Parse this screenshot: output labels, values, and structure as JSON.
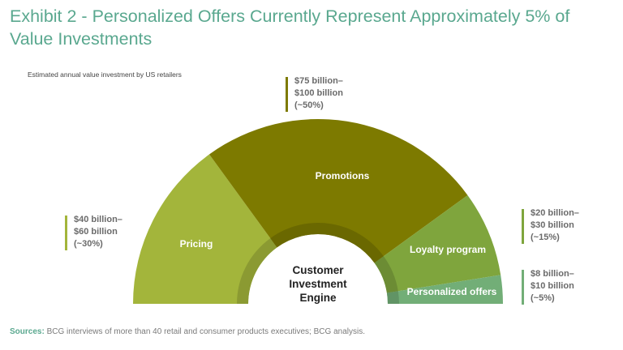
{
  "title": "Exhibit 2 - Personalized Offers Currently Represent Approximately 5% of Value Investments",
  "chart_data": {
    "type": "pie",
    "subtitle": "Estimated annual value investment by US retailers",
    "center_label": [
      "Customer",
      "Investment",
      "Engine"
    ],
    "segments": [
      {
        "name": "Pricing",
        "value": 30,
        "color": "#a3b53b",
        "annotation": [
          "$40 billion–",
          "$60 billion",
          "(~30%)"
        ]
      },
      {
        "name": "Promotions",
        "value": 50,
        "color": "#7d7a00",
        "annotation": [
          "$75 billion–",
          "$100 billion",
          "(~50%)"
        ]
      },
      {
        "name": "Loyalty program",
        "value": 15,
        "color": "#7fa53d",
        "annotation": [
          "$20 billion–",
          "$30 billion",
          "(~15%)"
        ]
      },
      {
        "name": "Personalized offers",
        "value": 5,
        "color": "#72ae77",
        "annotation": [
          "$8 billion–",
          "$10 billion",
          "(~5%)"
        ]
      }
    ],
    "annotation_bar_colors": [
      "#a3b53b",
      "#7d7a00",
      "#7fa53d",
      "#72ae77"
    ]
  },
  "source": {
    "label": "Sources:",
    "text": " BCG interviews of more than 40 retail and consumer products executives; BCG analysis."
  }
}
